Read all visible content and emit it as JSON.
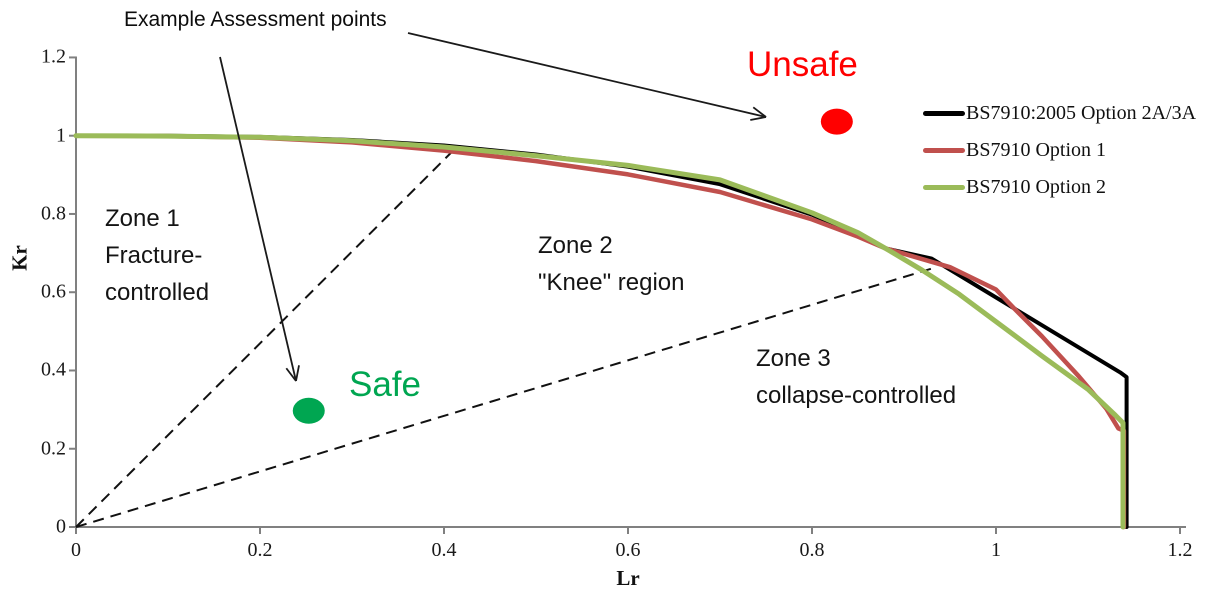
{
  "chart_data": {
    "type": "line",
    "title": "",
    "xlabel": "Lr",
    "ylabel": "Kr",
    "xlim": [
      0,
      1.2
    ],
    "ylim": [
      0,
      1.2
    ],
    "grid": false,
    "legend_position": "upper-right",
    "x_tick_values": [
      0,
      0.2,
      0.4,
      0.6,
      0.8,
      1,
      1.2
    ],
    "x_tick_labels": [
      "0",
      "0.2",
      "0.4",
      "0.6",
      "0.8",
      "1",
      "1.2"
    ],
    "y_tick_values": [
      0,
      0.2,
      0.4,
      0.6,
      0.8,
      1,
      1.2
    ],
    "y_tick_labels": [
      "0",
      "0.2",
      "0.4",
      "0.6",
      "0.8",
      "1",
      "1.2"
    ],
    "colors": {
      "axis": "#808080",
      "zone_boundary": "#111111"
    },
    "series": [
      {
        "name": "BS7910:2005 Option 2A/3A",
        "color": "#000000",
        "width": 4,
        "points": [
          [
            0,
            1.0
          ],
          [
            0.1,
            1.0
          ],
          [
            0.2,
            0.997
          ],
          [
            0.3,
            0.989
          ],
          [
            0.4,
            0.975
          ],
          [
            0.5,
            0.952
          ],
          [
            0.6,
            0.921
          ],
          [
            0.7,
            0.876
          ],
          [
            0.8,
            0.798
          ],
          [
            0.85,
            0.747
          ],
          [
            0.88,
            0.712
          ],
          [
            0.93,
            0.686
          ],
          [
            1.135,
            0.395
          ],
          [
            1.142,
            0.383
          ],
          [
            1.142,
            0
          ]
        ]
      },
      {
        "name": "BS7910 Option 1",
        "color": "#C0504D",
        "width": 4.5,
        "points": [
          [
            0,
            1.0
          ],
          [
            0.1,
            0.999
          ],
          [
            0.2,
            0.995
          ],
          [
            0.3,
            0.983
          ],
          [
            0.4,
            0.962
          ],
          [
            0.5,
            0.935
          ],
          [
            0.6,
            0.901
          ],
          [
            0.7,
            0.856
          ],
          [
            0.8,
            0.786
          ],
          [
            0.85,
            0.742
          ],
          [
            0.88,
            0.712
          ],
          [
            0.95,
            0.664
          ],
          [
            1.0,
            0.607
          ],
          [
            1.02,
            0.558
          ],
          [
            1.05,
            0.487
          ],
          [
            1.09,
            0.385
          ],
          [
            1.12,
            0.302
          ],
          [
            1.133,
            0.252
          ],
          [
            1.139,
            0.246
          ],
          [
            1.139,
            0
          ]
        ]
      },
      {
        "name": "BS7910 Option 2",
        "color": "#9BBB59",
        "width": 5,
        "points": [
          [
            0,
            1.0
          ],
          [
            0.1,
            0.999
          ],
          [
            0.2,
            0.996
          ],
          [
            0.3,
            0.987
          ],
          [
            0.4,
            0.971
          ],
          [
            0.5,
            0.949
          ],
          [
            0.6,
            0.924
          ],
          [
            0.7,
            0.887
          ],
          [
            0.8,
            0.803
          ],
          [
            0.85,
            0.752
          ],
          [
            0.88,
            0.712
          ],
          [
            0.92,
            0.656
          ],
          [
            0.96,
            0.595
          ],
          [
            1.0,
            0.525
          ],
          [
            1.05,
            0.437
          ],
          [
            1.1,
            0.352
          ],
          [
            1.13,
            0.285
          ],
          [
            1.138,
            0.266
          ],
          [
            1.138,
            0
          ]
        ]
      }
    ],
    "zone_boundaries": [
      {
        "style": "dashed",
        "from": [
          0,
          0
        ],
        "to": [
          0.41,
          0.962
        ]
      },
      {
        "style": "dashed",
        "from": [
          0,
          0
        ],
        "to": [
          0.931,
          0.661
        ]
      }
    ],
    "assessment_points": [
      {
        "label": "Safe",
        "lr": 0.253,
        "kr": 0.297,
        "color": "#00A651",
        "label_color": "#00A651"
      },
      {
        "label": "Unsafe",
        "lr": 0.827,
        "kr": 1.036,
        "color": "#FF0000",
        "label_color": "#FF0000"
      }
    ],
    "zones": [
      {
        "name": "zone-1",
        "lines": [
          "Zone 1",
          "Fracture-",
          "controlled"
        ]
      },
      {
        "name": "zone-2",
        "lines": [
          "Zone 2",
          "\"Knee\" region"
        ]
      },
      {
        "name": "zone-3",
        "lines": [
          "Zone 3",
          "collapse-controlled"
        ]
      }
    ],
    "annotation": {
      "text": "Example Assessment points",
      "arrows": [
        {
          "target": "Safe",
          "from": [
            220,
            57
          ],
          "to": [
            296,
            381
          ]
        },
        {
          "target": "Unsafe",
          "from": [
            408,
            33
          ],
          "to": [
            766,
            117
          ]
        }
      ]
    }
  }
}
